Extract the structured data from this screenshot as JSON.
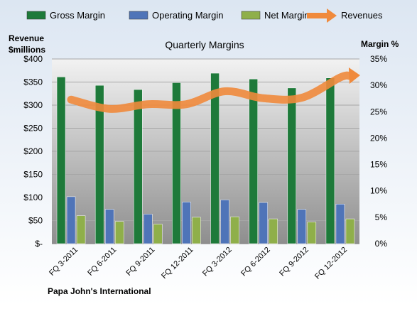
{
  "chart_data": {
    "type": "bar",
    "title": "Quarterly Margins",
    "left_axis_label_line1": "Revenue",
    "left_axis_label_line2": "$millions",
    "right_axis_label": "Margin %",
    "footer": "Papa John's International",
    "categories": [
      "FQ 3-2011",
      "FQ 6-2011",
      "FQ 9-2011",
      "FQ 12-2011",
      "FQ 3-2012",
      "FQ 6-2012",
      "FQ 9-2012",
      "FQ 12-2012"
    ],
    "left_ticks": [
      "$-",
      "$50",
      "$100",
      "$150",
      "$200",
      "$250",
      "$300",
      "$350",
      "$400"
    ],
    "right_ticks": [
      "0%",
      "5%",
      "10%",
      "15%",
      "20%",
      "25%",
      "30%",
      "35%"
    ],
    "left_range": [
      0,
      400
    ],
    "right_range": [
      0,
      35
    ],
    "legend_position": "top",
    "series": [
      {
        "name": "Gross Margin",
        "axis": "right",
        "kind": "bar",
        "color": "#1E7A3A",
        "values": [
          31.6,
          30.0,
          29.2,
          30.5,
          32.3,
          31.2,
          29.5,
          31.4
        ]
      },
      {
        "name": "Operating Margin",
        "axis": "right",
        "kind": "bar",
        "color": "#4F74B8",
        "values": [
          8.9,
          6.5,
          5.6,
          7.9,
          8.3,
          7.8,
          6.5,
          7.5
        ]
      },
      {
        "name": "Net Margin",
        "axis": "right",
        "kind": "bar",
        "color": "#8FAF4A",
        "values": [
          5.3,
          4.2,
          3.7,
          5.0,
          5.1,
          4.7,
          4.1,
          4.7
        ]
      },
      {
        "name": "Revenues",
        "axis": "left",
        "kind": "line",
        "color": "#F08A3C",
        "values": [
          312,
          292,
          302,
          302,
          330,
          315,
          316,
          360
        ]
      }
    ]
  }
}
